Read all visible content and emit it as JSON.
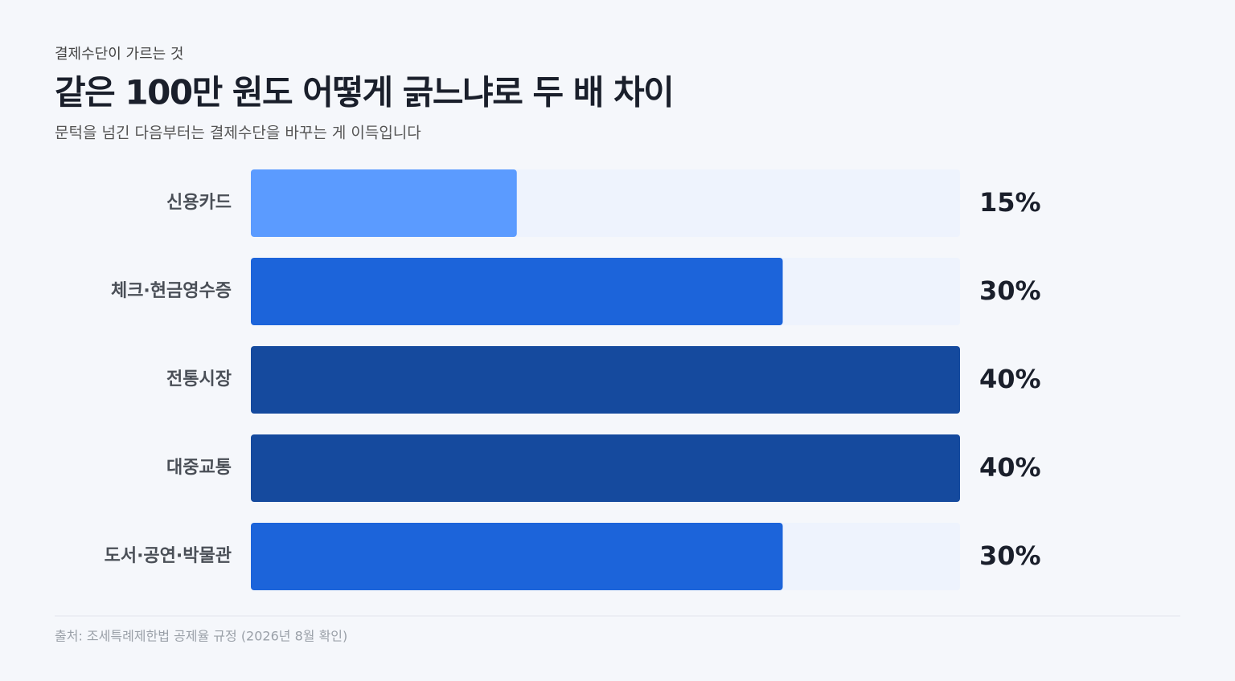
{
  "chart_data": {
    "type": "bar",
    "eyebrow": "결제수단이 가르는 것",
    "title": "같은 100만 원도 어떻게 긁느냐로 두 배 차이",
    "subtitle": "문턱을 넘긴 다음부터는 결제수단을 바꾸는 게 이득입니다",
    "categories": [
      "신용카드",
      "체크·현금영수증",
      "전통시장",
      "대중교통",
      "도서·공연·박물관"
    ],
    "values": [
      15,
      30,
      40,
      40,
      30
    ],
    "value_labels": [
      "15%",
      "30%",
      "40%",
      "40%",
      "30%"
    ],
    "colors": [
      "#5b9bff",
      "#1c64da",
      "#154a9e",
      "#154a9e",
      "#1c64da"
    ],
    "xlim": [
      0,
      40
    ],
    "source": "출처: 조세특례제한법 공제율 규정 (2026년 8월 확인)"
  }
}
